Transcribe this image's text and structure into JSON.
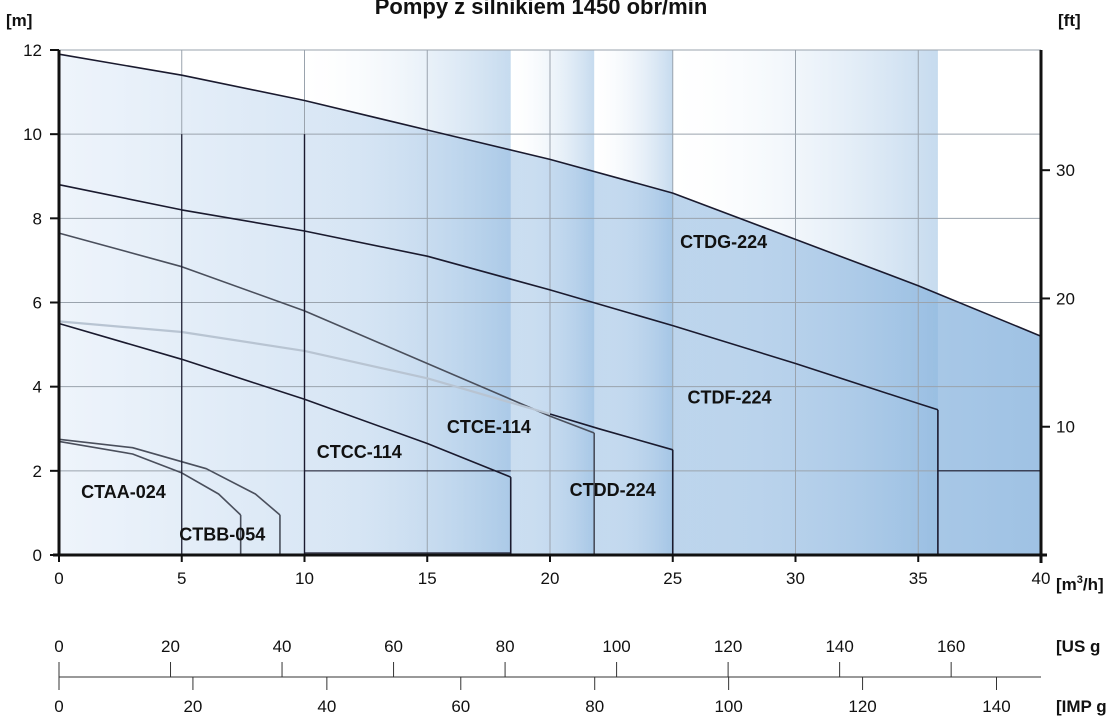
{
  "chart_data": {
    "type": "line",
    "title": "Pompy z silnikiem 1450 obr/min",
    "y_unit_left": "[m]",
    "y_unit_right": "[ft]",
    "x_unit": "[m³/h]",
    "xlim": [
      0,
      40
    ],
    "ylim": [
      0,
      12
    ],
    "x_ticks": [
      0,
      5,
      10,
      15,
      20,
      25,
      30,
      35,
      40
    ],
    "y_ticks": [
      0,
      2,
      4,
      6,
      8,
      10,
      12
    ],
    "ft_ticks": [
      10,
      20,
      30
    ],
    "us_gpm_unit": "[US g",
    "us_gpm_ticks": [
      0,
      20,
      40,
      60,
      80,
      100,
      120,
      140,
      160
    ],
    "imp_gpm_unit": "[IMP g",
    "imp_gpm_ticks": [
      0,
      20,
      40,
      60,
      80,
      100,
      120,
      140
    ],
    "grid": true,
    "series": [
      {
        "name": "CTDG-224",
        "color": "#1a1a2e",
        "x": [
          0,
          5,
          10,
          15,
          20,
          25,
          30,
          35,
          40
        ],
        "y": [
          11.9,
          11.4,
          10.8,
          10.1,
          9.4,
          8.6,
          7.5,
          6.4,
          5.2
        ]
      },
      {
        "name": "CTDF-224",
        "color": "#1a1a2e",
        "x": [
          0,
          5,
          10,
          15,
          20,
          25,
          30,
          35,
          35.8
        ],
        "y": [
          8.8,
          8.2,
          7.7,
          7.1,
          6.3,
          5.45,
          4.55,
          3.6,
          3.45
        ]
      },
      {
        "name": "CTDD-224",
        "color": "#1a1a2e",
        "x": [
          20,
          22,
          25
        ],
        "y": [
          3.35,
          3.0,
          2.5
        ]
      },
      {
        "name": "CTCE-114",
        "color": "#4a4f5c",
        "x": [
          0,
          5,
          10,
          15,
          20,
          21.8
        ],
        "y": [
          7.65,
          6.85,
          5.8,
          4.55,
          3.3,
          2.9
        ]
      },
      {
        "name": "CTCC-114",
        "color": "#1a1a2e",
        "x": [
          0,
          5,
          10,
          15,
          18.4
        ],
        "y": [
          5.5,
          4.65,
          3.7,
          2.65,
          1.85
        ]
      },
      {
        "name": "CTBB-054",
        "color": "#4a4f5c",
        "x": [
          0,
          3,
          6,
          8,
          9
        ],
        "y": [
          2.75,
          2.55,
          2.05,
          1.45,
          0.95
        ]
      },
      {
        "name": "CTAA-024",
        "color": "#4a4f5c",
        "x": [
          0,
          3,
          5,
          6.5,
          7.4
        ],
        "y": [
          2.7,
          2.4,
          1.95,
          1.45,
          0.95
        ]
      },
      {
        "name": "",
        "color": "#b8c4d2",
        "x": [
          0,
          5,
          10,
          15,
          20
        ],
        "y": [
          5.55,
          5.3,
          4.85,
          4.2,
          3.35
        ]
      }
    ],
    "labels": [
      {
        "text": "CTDG-224",
        "x": 25.3,
        "y": 7.3
      },
      {
        "text": "CTDF-224",
        "x": 25.6,
        "y": 3.6
      },
      {
        "text": "CTCE-114",
        "x": 15.8,
        "y": 2.9
      },
      {
        "text": "CTCC-114",
        "x": 10.5,
        "y": 2.3
      },
      {
        "text": "CTDD-224",
        "x": 20.8,
        "y": 1.4
      },
      {
        "text": "CTAA-024",
        "x": 0.9,
        "y": 1.35
      },
      {
        "text": "CTBB-054",
        "x": 4.9,
        "y": 0.35
      }
    ]
  }
}
